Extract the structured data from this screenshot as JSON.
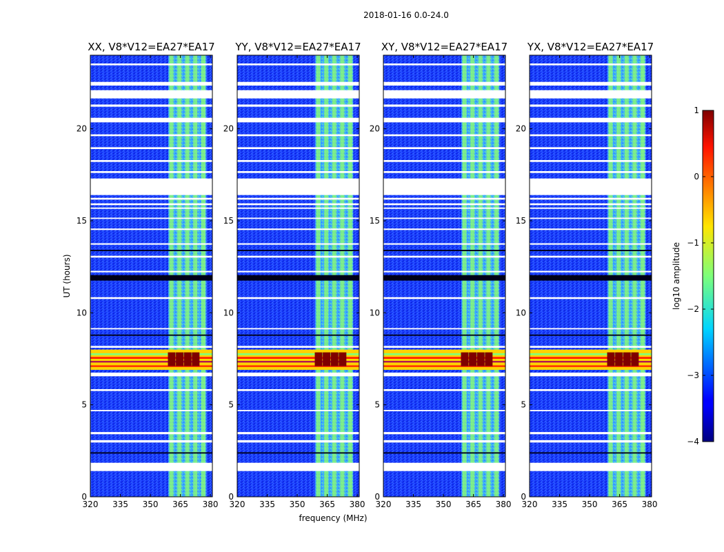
{
  "chart_data": {
    "type": "heatmap",
    "suptitle": "2018-01-16 0.0-24.0",
    "xlabel": "frequency (MHz)",
    "ylabel": "UT (hours)",
    "xlim": [
      320,
      381
    ],
    "ylim": [
      0,
      24
    ],
    "xticks": [
      320,
      335,
      350,
      365,
      380
    ],
    "yticks": [
      0,
      5,
      10,
      15,
      20
    ],
    "panels": [
      {
        "title": "XX, V8*V12=EA27*EA17",
        "band_start_mhz": 359
      },
      {
        "title": "YY, V8*V12=EA27*EA17",
        "band_start_mhz": 359
      },
      {
        "title": "XY, V8*V12=EA27*EA17",
        "band_start_mhz": 359
      },
      {
        "title": "YX, V8*V12=EA27*EA17",
        "band_start_mhz": 359
      }
    ],
    "channel_columns_mhz": [
      360.5,
      364.5,
      368.5,
      372.5,
      376.5
    ],
    "flagged_ut_ranges": [
      [
        1.4,
        1.85
      ],
      [
        2.95,
        3.08
      ],
      [
        3.4,
        3.52
      ],
      [
        4.65,
        4.72
      ],
      [
        5.75,
        5.85
      ],
      [
        6.55,
        6.75
      ],
      [
        8.1,
        8.2
      ],
      [
        9.1,
        9.17
      ],
      [
        10.75,
        10.85
      ],
      [
        12.2,
        12.28
      ],
      [
        13.0,
        13.1
      ],
      [
        13.7,
        13.78
      ],
      [
        14.5,
        14.58
      ],
      [
        15.1,
        15.17
      ],
      [
        15.65,
        15.72
      ],
      [
        15.85,
        15.95
      ],
      [
        16.15,
        16.25
      ],
      [
        16.4,
        17.3
      ],
      [
        17.6,
        17.7
      ],
      [
        18.2,
        18.3
      ],
      [
        18.9,
        19.0
      ],
      [
        19.6,
        19.7
      ],
      [
        20.35,
        20.6
      ],
      [
        21.2,
        21.32
      ],
      [
        21.65,
        22.1
      ],
      [
        22.35,
        22.55
      ],
      [
        23.45,
        23.55
      ]
    ],
    "dark_ut_ranges": [
      [
        11.75,
        12.05
      ],
      [
        8.75,
        8.82
      ],
      [
        13.35,
        13.42
      ],
      [
        2.35,
        2.42
      ]
    ],
    "rfi_event_ut": [
      6.9,
      8.0
    ],
    "rfi_strong_ut": [
      7.1,
      7.85
    ],
    "colorbar": {
      "label": "log10 amplitude",
      "min": -4,
      "max": 1,
      "ticks": [
        1,
        0,
        -1,
        -2,
        -3,
        -4
      ],
      "tick_labels": [
        "1",
        "0",
        "−1",
        "−2",
        "−3",
        "−4"
      ],
      "colormap": "jet"
    }
  }
}
